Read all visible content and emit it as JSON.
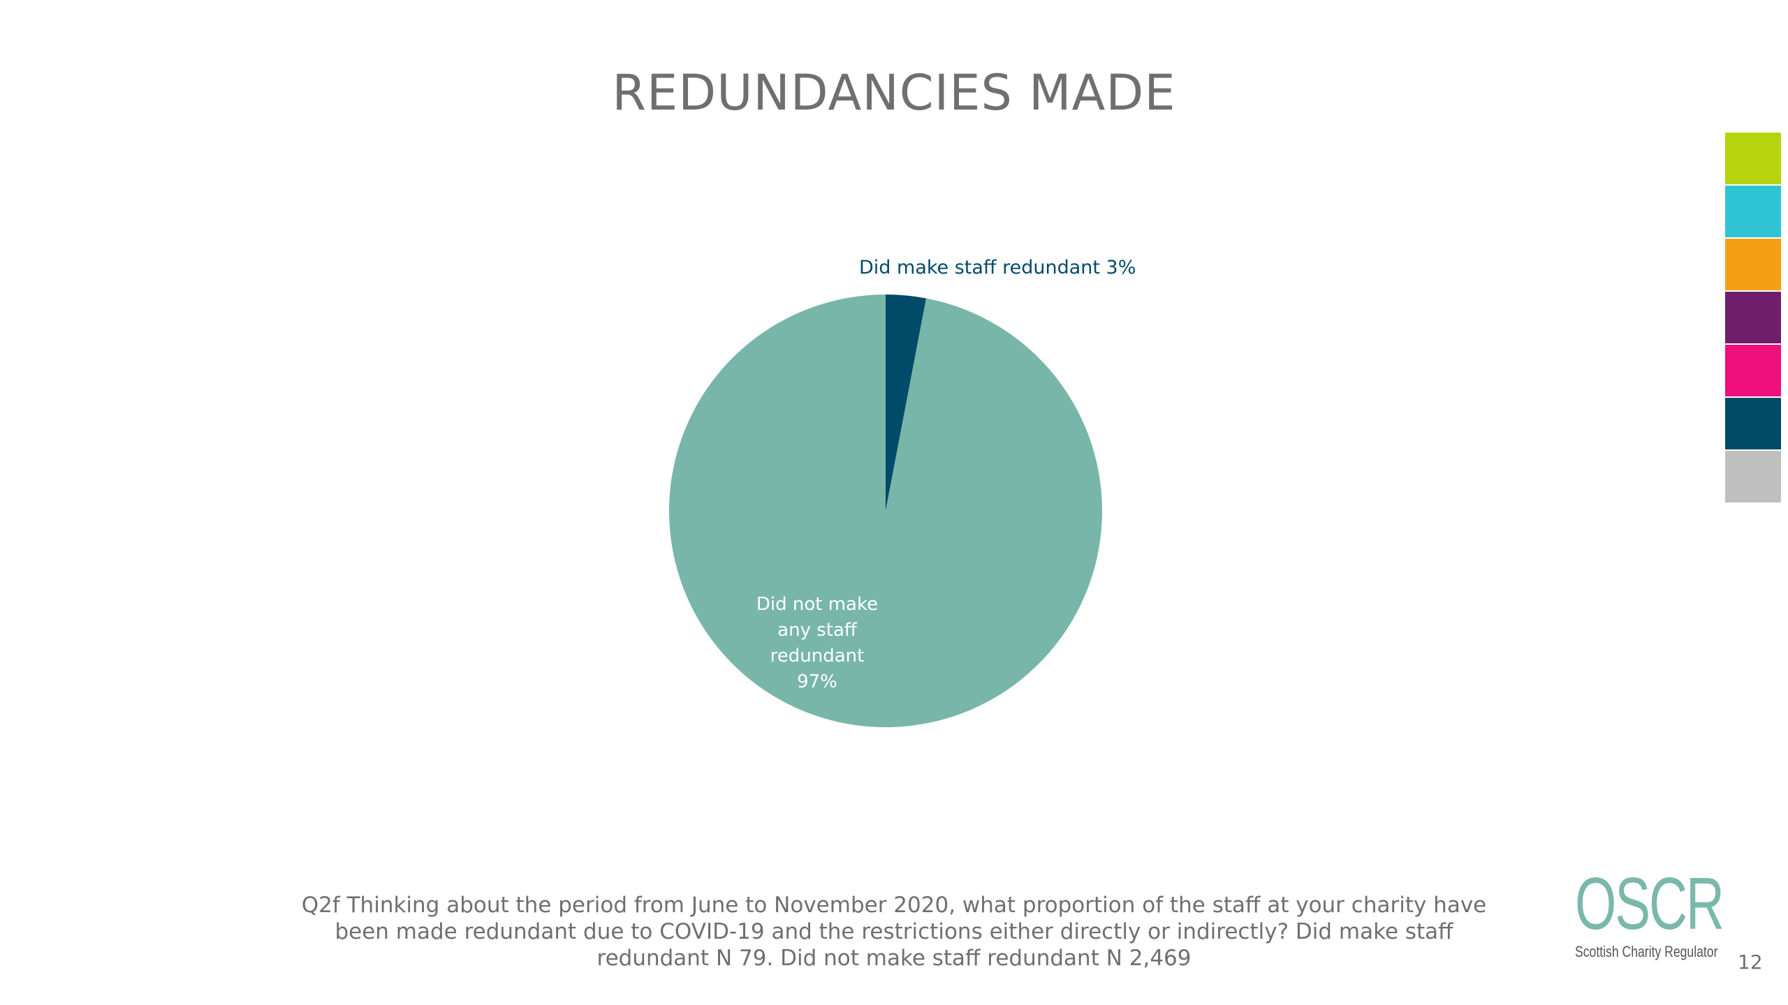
{
  "slide": {
    "title": "REDUNDANCIES MADE",
    "footnote": "Q2f Thinking about the period from June to November 2020, what proportion of the staff at your charity have been made redundant due to COVID-19 and the restrictions either directly or indirectly? Did make staff redundant N 79. Did not make staff redundant N 2,469",
    "page_number": "12"
  },
  "logo": {
    "wordmark": "OSCR",
    "tagline": "Scottish Charity Regulator"
  },
  "side_strip": {
    "colors": [
      "#b5d40e",
      "#2ec4d6",
      "#f5a013",
      "#6d1f6b",
      "#ee0f7a",
      "#004b68",
      "#bfbfbf"
    ]
  },
  "chart_data": {
    "type": "pie",
    "title": "REDUNDANCIES MADE",
    "slices": [
      {
        "name": "Did make staff redundant",
        "value": 3,
        "label": "Did make staff redundant 3%",
        "color": "#004b68"
      },
      {
        "name": "Did not make any staff redundant",
        "value": 97,
        "label_lines": [
          "Did not make",
          "any staff",
          "redundant",
          "97%"
        ],
        "color": "#78b6aa"
      }
    ]
  }
}
